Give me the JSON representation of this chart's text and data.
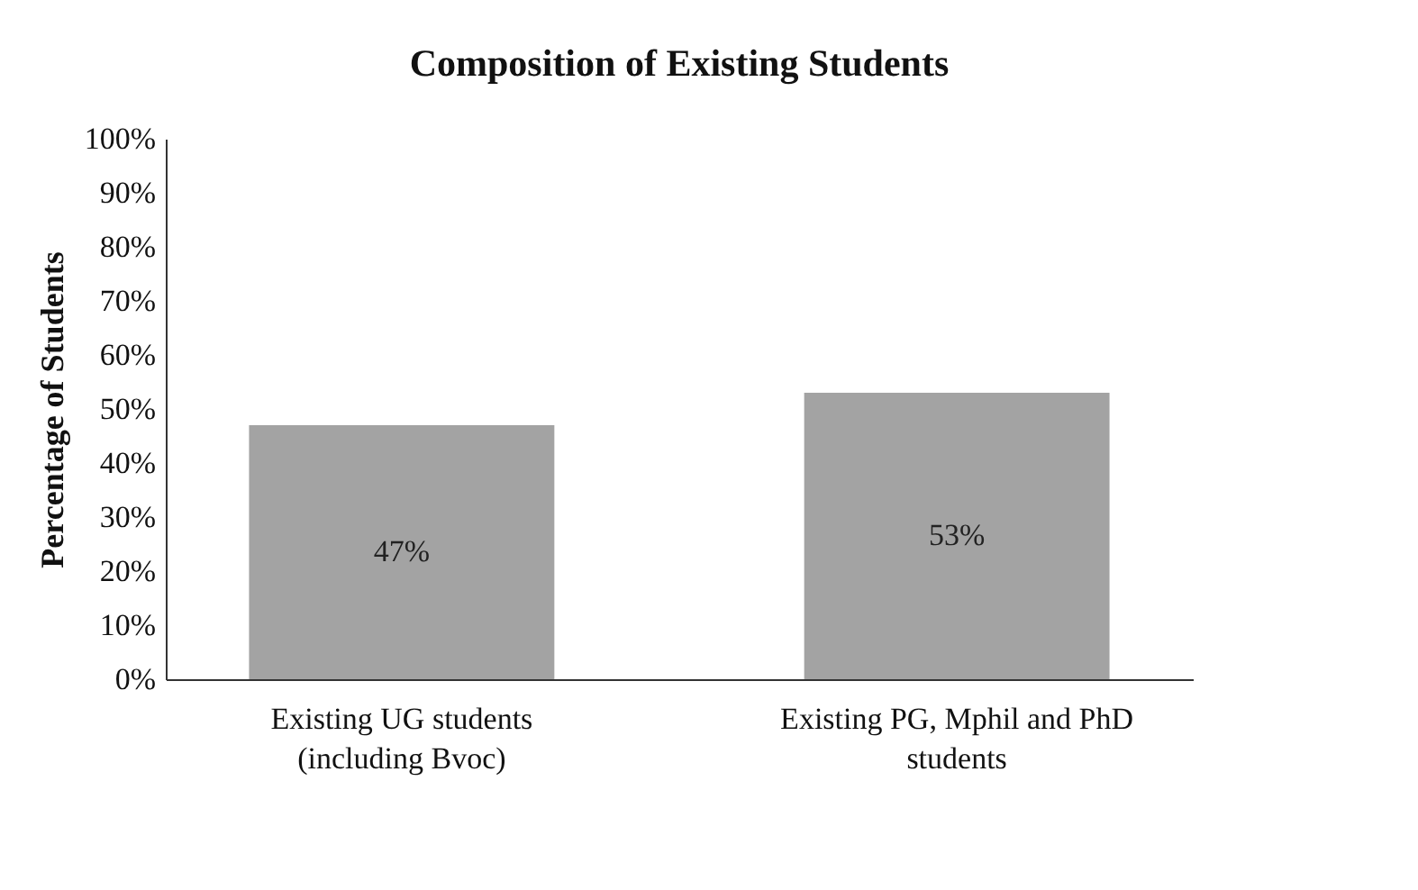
{
  "chart_data": {
    "type": "bar",
    "title": "Composition of Existing Students",
    "ylabel": "Percentage of Students",
    "categories": [
      "Existing UG students\n(including Bvoc)",
      "Existing PG, Mphil and PhD\nstudents"
    ],
    "values": [
      47,
      53
    ],
    "color": "#a3a3a3",
    "value_labels": [
      "47%",
      "53%"
    ],
    "ylim": [
      0,
      100
    ],
    "yticks": [
      {
        "value": 0,
        "label": "0%"
      },
      {
        "value": 10,
        "label": "10%"
      },
      {
        "value": 20,
        "label": "20%"
      },
      {
        "value": 30,
        "label": "30%"
      },
      {
        "value": 40,
        "label": "40%"
      },
      {
        "value": 50,
        "label": "50%"
      },
      {
        "value": 60,
        "label": "60%"
      },
      {
        "value": 70,
        "label": "70%"
      },
      {
        "value": 80,
        "label": "80%"
      },
      {
        "value": 90,
        "label": "90%"
      },
      {
        "value": 100,
        "label": "100%"
      }
    ],
    "grid": false
  }
}
